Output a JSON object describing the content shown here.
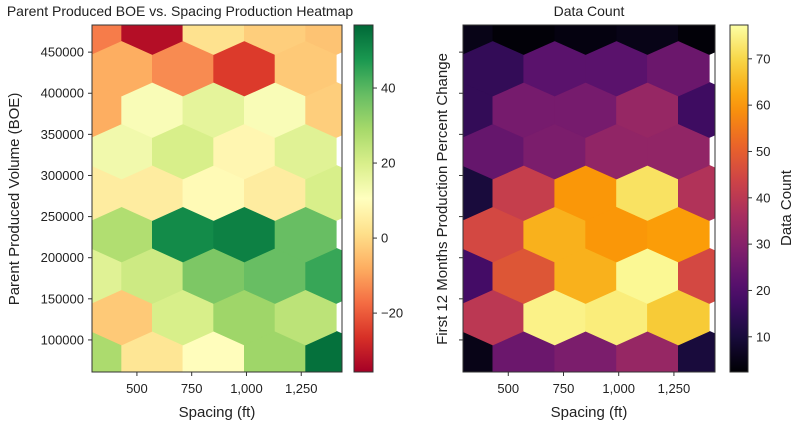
{
  "chart_data": [
    {
      "type": "heatmap",
      "subtype": "hexbin",
      "title": "Parent Produced BOE vs. Spacing Production Heatmap",
      "xlabel": "Spacing (ft)",
      "ylabel": "Parent Produced Volume (BOE)",
      "colorbar_label": "",
      "colormap": "RdYlGn",
      "xlim": [
        295,
        1436
      ],
      "ylim": [
        61000,
        483000
      ],
      "clim": [
        -35.7,
        56.8
      ],
      "xticks": [
        500,
        750,
        1000,
        1250
      ],
      "xtick_labels": [
        "500",
        "750",
        "1,000",
        "1,250"
      ],
      "yticks": [
        100000,
        150000,
        200000,
        250000,
        300000,
        350000,
        400000,
        450000
      ],
      "ytick_labels": [
        "100000",
        "150000",
        "200000",
        "250000",
        "300000",
        "350000",
        "400000",
        "450000"
      ],
      "cticks": [
        -20,
        0,
        20,
        40
      ],
      "ctick_labels": [
        "−20",
        "0",
        "20",
        "40"
      ],
      "hex_x_even": [
        290,
        570,
        850,
        1130,
        1410
      ],
      "hex_x_odd": [
        430,
        710,
        990,
        1270
      ],
      "hex_y": [
        77000,
        127450,
        177900,
        228350,
        278800,
        329250,
        379700,
        430150,
        480600
      ],
      "values": [
        [
          28,
          3,
          10,
          30,
          55
        ],
        [
          -3,
          20,
          30,
          25
        ],
        [
          18,
          22,
          35,
          38,
          44
        ],
        [
          27,
          50,
          52,
          38
        ],
        [
          5,
          5,
          9,
          5,
          20
        ],
        [
          14,
          20,
          8,
          18
        ],
        [
          -8,
          12,
          17,
          12,
          -2
        ],
        [
          -8,
          -13,
          -25,
          -3
        ],
        [
          -15,
          -33,
          2,
          -2,
          -4
        ]
      ]
    },
    {
      "type": "heatmap",
      "subtype": "hexbin",
      "title": "Data Count",
      "xlabel": "Spacing (ft)",
      "ylabel": "First 12 Months Production Percent Change",
      "colorbar_label": "Data Count",
      "colormap": "inferno",
      "xlim": [
        295,
        1436
      ],
      "ylim": [
        61000,
        483000
      ],
      "clim": [
        2.4,
        77.3
      ],
      "xticks": [
        500,
        750,
        1000,
        1250
      ],
      "xtick_labels": [
        "500",
        "750",
        "1,000",
        "1,250"
      ],
      "yticks": [
        100000,
        150000,
        200000,
        250000,
        300000,
        350000,
        400000,
        450000
      ],
      "ytick_labels": [],
      "cticks": [
        10,
        20,
        30,
        40,
        50,
        60,
        70
      ],
      "ctick_labels": [
        "10",
        "20",
        "30",
        "40",
        "50",
        "60",
        "70"
      ],
      "hex_x_even": [
        290,
        570,
        850,
        1130,
        1410
      ],
      "hex_x_odd": [
        430,
        710,
        990,
        1270
      ],
      "hex_y": [
        77000,
        127450,
        177900,
        228350,
        278800,
        329250,
        379700,
        430150,
        480600
      ],
      "values": [
        [
          5,
          25,
          28,
          33,
          10
        ],
        [
          40,
          75,
          74,
          68
        ],
        [
          18,
          48,
          64,
          76,
          45
        ],
        [
          45,
          64,
          60,
          61
        ],
        [
          10,
          42,
          60,
          72,
          38
        ],
        [
          24,
          28,
          32,
          32
        ],
        [
          15,
          27,
          27,
          33,
          17
        ],
        [
          15,
          22,
          22,
          25
        ],
        [
          5,
          3,
          4,
          5,
          3
        ]
      ]
    }
  ]
}
